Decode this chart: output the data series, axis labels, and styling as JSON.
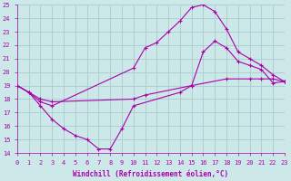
{
  "title": "",
  "xlabel": "Windchill (Refroidissement éolien,°C)",
  "background_color": "#cde8e8",
  "grid_color": "#aacccc",
  "line_color": "#aa00aa",
  "xlim": [
    0,
    23
  ],
  "ylim": [
    14,
    25
  ],
  "xticks": [
    0,
    1,
    2,
    3,
    4,
    5,
    6,
    7,
    8,
    9,
    10,
    11,
    12,
    13,
    14,
    15,
    16,
    17,
    18,
    19,
    20,
    21,
    22,
    23
  ],
  "yticks": [
    14,
    15,
    16,
    17,
    18,
    19,
    20,
    21,
    22,
    23,
    24,
    25
  ],
  "lines": [
    {
      "x": [
        0,
        1,
        2,
        3,
        10,
        11,
        15,
        18,
        20,
        21,
        22,
        23
      ],
      "y": [
        19,
        18.5,
        18.0,
        17.8,
        18.0,
        18.3,
        19.0,
        19.5,
        19.5,
        19.5,
        19.5,
        19.3
      ]
    },
    {
      "x": [
        0,
        1,
        2,
        3,
        10,
        11,
        12,
        13,
        14,
        15,
        16,
        17,
        18,
        19,
        20,
        21,
        22,
        23
      ],
      "y": [
        19,
        18.5,
        17.8,
        17.5,
        20.3,
        21.8,
        22.2,
        23.0,
        23.8,
        24.8,
        25.0,
        24.5,
        23.2,
        21.5,
        21.0,
        20.5,
        19.8,
        19.3
      ]
    },
    {
      "x": [
        0,
        1,
        2,
        3,
        4,
        5,
        6,
        7,
        8,
        9,
        10,
        14,
        15,
        16,
        17,
        18,
        19,
        20,
        21,
        22,
        23
      ],
      "y": [
        19,
        18.5,
        17.5,
        16.5,
        15.8,
        15.3,
        15.0,
        14.3,
        14.3,
        15.8,
        17.5,
        18.5,
        19.0,
        21.5,
        22.3,
        21.8,
        20.8,
        20.5,
        20.2,
        19.2,
        19.3
      ]
    }
  ]
}
